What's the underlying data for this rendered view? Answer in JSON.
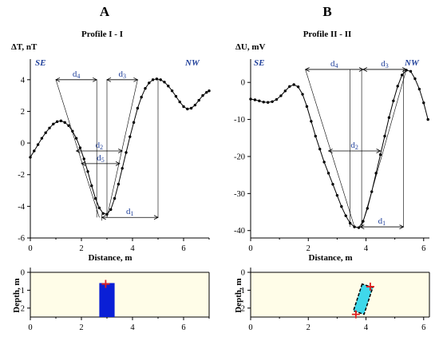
{
  "panels": {
    "A": {
      "letter": "A",
      "title": "Profile I - I"
    },
    "B": {
      "letter": "B",
      "title": "Profile II - II"
    }
  },
  "chart_data": [
    {
      "id": "A_profile",
      "type": "line",
      "title": "Profile I - I",
      "xlabel": "Distance, m",
      "ylabel": "ΔT, nT",
      "xlim": [
        0,
        7
      ],
      "ylim": [
        -6,
        5
      ],
      "xticks": [
        "0",
        "2",
        "4",
        "6"
      ],
      "yticks": [
        "-6",
        "-4",
        "-2",
        "0",
        "2",
        "4"
      ],
      "corner_left": "SE",
      "corner_right": "NW",
      "grid": false,
      "series": [
        {
          "x": [
            0.0,
            0.15,
            0.3,
            0.45,
            0.6,
            0.75,
            0.9,
            1.05,
            1.2,
            1.35,
            1.5,
            1.65,
            1.8,
            1.95,
            2.1,
            2.25,
            2.4,
            2.55,
            2.7,
            2.85,
            3.0,
            3.15,
            3.3,
            3.45,
            3.6,
            3.75,
            3.9,
            4.05,
            4.2,
            4.35,
            4.5,
            4.65,
            4.8,
            4.95,
            5.1,
            5.25,
            5.4,
            5.55,
            5.7,
            5.85,
            6.0,
            6.15,
            6.3,
            6.45,
            6.6,
            6.75,
            6.9,
            7.0
          ],
          "y": [
            -0.9,
            -0.5,
            -0.1,
            0.3,
            0.65,
            0.95,
            1.2,
            1.35,
            1.4,
            1.3,
            1.1,
            0.75,
            0.3,
            -0.3,
            -1.0,
            -1.8,
            -2.7,
            -3.5,
            -4.1,
            -4.45,
            -4.5,
            -4.2,
            -3.5,
            -2.6,
            -1.6,
            -0.6,
            0.4,
            1.3,
            2.2,
            2.9,
            3.45,
            3.8,
            4.0,
            4.05,
            4.0,
            3.85,
            3.6,
            3.3,
            2.95,
            2.6,
            2.3,
            2.15,
            2.2,
            2.4,
            2.7,
            3.0,
            3.2,
            3.3
          ]
        }
      ],
      "annotations": [
        {
          "label": "d4",
          "x_from": 1.0,
          "x_to": 2.6,
          "y": 4.0
        },
        {
          "label": "d3",
          "x_from": 3.0,
          "x_to": 4.2,
          "y": 4.0
        },
        {
          "label": "d2",
          "x_from": 1.8,
          "x_to": 3.6,
          "y": -0.5
        },
        {
          "label": "d5",
          "x_from": 2.0,
          "x_to": 3.5,
          "y": -1.3
        },
        {
          "label": "d1",
          "x_from": 2.8,
          "x_to": 5.0,
          "y": -4.7
        }
      ]
    },
    {
      "id": "B_profile",
      "type": "line",
      "title": "Profile II - II",
      "xlabel": "Distance, m",
      "ylabel": "ΔU, mV",
      "xlim": [
        0,
        6.2
      ],
      "ylim": [
        -42,
        5
      ],
      "xticks": [
        "0",
        "2",
        "4",
        "6"
      ],
      "yticks": [
        "-40",
        "-30",
        "-20",
        "-10",
        "0"
      ],
      "corner_left": "SE",
      "corner_right": "NW",
      "grid": false,
      "series": [
        {
          "x": [
            0.0,
            0.15,
            0.3,
            0.45,
            0.6,
            0.75,
            0.9,
            1.05,
            1.2,
            1.35,
            1.5,
            1.65,
            1.8,
            1.95,
            2.1,
            2.25,
            2.4,
            2.55,
            2.7,
            2.85,
            3.0,
            3.15,
            3.3,
            3.45,
            3.6,
            3.75,
            3.9,
            4.05,
            4.2,
            4.35,
            4.5,
            4.65,
            4.8,
            4.95,
            5.1,
            5.25,
            5.4,
            5.55,
            5.7,
            5.85,
            6.0,
            6.15
          ],
          "y": [
            -4.5,
            -4.7,
            -5.0,
            -5.3,
            -5.4,
            -5.2,
            -4.6,
            -3.6,
            -2.3,
            -1.1,
            -0.6,
            -1.2,
            -3.2,
            -6.5,
            -10.5,
            -14.5,
            -18.0,
            -21.5,
            -24.5,
            -27.5,
            -30.5,
            -33.5,
            -36.0,
            -38.0,
            -39.0,
            -39.2,
            -37.5,
            -34.0,
            -29.5,
            -24.5,
            -19.5,
            -14.5,
            -9.5,
            -5.0,
            -1.0,
            2.0,
            3.3,
            3.0,
            1.0,
            -1.8,
            -5.5,
            -10.0
          ]
        }
      ],
      "annotations": [
        {
          "label": "d4",
          "x_from": 1.9,
          "x_to": 3.9,
          "y": 3.5
        },
        {
          "label": "d3",
          "x_from": 3.9,
          "x_to": 5.4,
          "y": 3.5
        },
        {
          "label": "d2",
          "x_from": 2.7,
          "x_to": 4.5,
          "y": -18.5
        },
        {
          "label": "d1",
          "x_from": 3.8,
          "x_to": 5.3,
          "y": -39.0
        }
      ]
    },
    {
      "id": "A_model",
      "type": "scatter",
      "xlabel": "",
      "ylabel": "Depth, m",
      "xlim": [
        0,
        7
      ],
      "ylim": [
        2.5,
        0
      ],
      "xticks": [
        "0",
        "2",
        "4",
        "6"
      ],
      "yticks": [
        "0",
        "1",
        "2"
      ],
      "body": {
        "shape": "vertical rectangle",
        "x_from": 2.7,
        "x_to": 3.3,
        "depth_from": 0.6,
        "depth_to": 2.5,
        "color": "#0a1fd6"
      },
      "marker": {
        "symbol": "+",
        "x": 2.95,
        "depth": 0.65,
        "color": "#e0201f"
      }
    },
    {
      "id": "B_model",
      "type": "scatter",
      "xlabel": "",
      "ylabel": "Depth, m",
      "xlim": [
        0,
        6.2
      ],
      "ylim": [
        2.5,
        0
      ],
      "xticks": [
        "0",
        "2",
        "4",
        "6"
      ],
      "yticks": [
        "0",
        "1",
        "2"
      ],
      "body": {
        "shape": "inclined rectangle",
        "top_center": [
          4.05,
          0.75
        ],
        "bottom_center": [
          3.75,
          2.25
        ],
        "color": "#3fd8ea",
        "outline": "dashed"
      },
      "markers": [
        {
          "symbol": "+",
          "x": 4.15,
          "depth": 0.8,
          "color": "#e0201f"
        },
        {
          "symbol": "+",
          "x": 3.65,
          "depth": 2.35,
          "color": "#e0201f"
        }
      ]
    }
  ]
}
